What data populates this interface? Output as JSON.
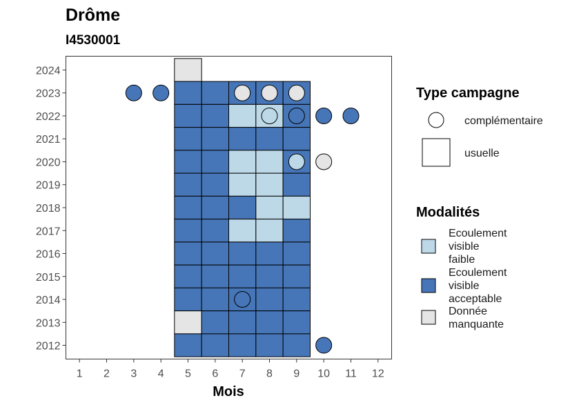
{
  "chart_data": {
    "type": "heatmap",
    "title": "Drôme",
    "subtitle": "I4530001",
    "xlabel": "Mois",
    "ylabel": "",
    "x_ticks": [
      1,
      2,
      3,
      4,
      5,
      6,
      7,
      8,
      9,
      10,
      11,
      12
    ],
    "y_ticks": [
      2012,
      2013,
      2014,
      2015,
      2016,
      2017,
      2018,
      2019,
      2020,
      2021,
      2022,
      2023,
      2024
    ],
    "xlim": [
      0.5,
      12.5
    ],
    "ylim": [
      2011.4,
      2024.6
    ],
    "grid": false,
    "colors": {
      "Ecoulement visible faible": "#bdd9e8",
      "Ecoulement visible acceptable": "#4676b7",
      "Donnée manquante": "#e5e5e5"
    },
    "usuelle": [
      {
        "year": 2024,
        "month": 5,
        "modalite": "Donnée manquante"
      },
      {
        "year": 2023,
        "month": 5,
        "modalite": "Ecoulement visible acceptable"
      },
      {
        "year": 2023,
        "month": 6,
        "modalite": "Ecoulement visible acceptable"
      },
      {
        "year": 2023,
        "month": 7,
        "modalite": "Ecoulement visible acceptable"
      },
      {
        "year": 2023,
        "month": 8,
        "modalite": "Ecoulement visible acceptable"
      },
      {
        "year": 2023,
        "month": 9,
        "modalite": "Ecoulement visible acceptable"
      },
      {
        "year": 2022,
        "month": 5,
        "modalite": "Ecoulement visible acceptable"
      },
      {
        "year": 2022,
        "month": 6,
        "modalite": "Ecoulement visible acceptable"
      },
      {
        "year": 2022,
        "month": 7,
        "modalite": "Ecoulement visible faible"
      },
      {
        "year": 2022,
        "month": 8,
        "modalite": "Ecoulement visible faible"
      },
      {
        "year": 2022,
        "month": 9,
        "modalite": "Ecoulement visible acceptable"
      },
      {
        "year": 2021,
        "month": 5,
        "modalite": "Ecoulement visible acceptable"
      },
      {
        "year": 2021,
        "month": 6,
        "modalite": "Ecoulement visible acceptable"
      },
      {
        "year": 2021,
        "month": 7,
        "modalite": "Ecoulement visible acceptable"
      },
      {
        "year": 2021,
        "month": 8,
        "modalite": "Ecoulement visible acceptable"
      },
      {
        "year": 2021,
        "month": 9,
        "modalite": "Ecoulement visible acceptable"
      },
      {
        "year": 2020,
        "month": 5,
        "modalite": "Ecoulement visible acceptable"
      },
      {
        "year": 2020,
        "month": 6,
        "modalite": "Ecoulement visible acceptable"
      },
      {
        "year": 2020,
        "month": 7,
        "modalite": "Ecoulement visible faible"
      },
      {
        "year": 2020,
        "month": 8,
        "modalite": "Ecoulement visible faible"
      },
      {
        "year": 2020,
        "month": 9,
        "modalite": "Ecoulement visible acceptable"
      },
      {
        "year": 2019,
        "month": 5,
        "modalite": "Ecoulement visible acceptable"
      },
      {
        "year": 2019,
        "month": 6,
        "modalite": "Ecoulement visible acceptable"
      },
      {
        "year": 2019,
        "month": 7,
        "modalite": "Ecoulement visible faible"
      },
      {
        "year": 2019,
        "month": 8,
        "modalite": "Ecoulement visible faible"
      },
      {
        "year": 2019,
        "month": 9,
        "modalite": "Ecoulement visible acceptable"
      },
      {
        "year": 2018,
        "month": 5,
        "modalite": "Ecoulement visible acceptable"
      },
      {
        "year": 2018,
        "month": 6,
        "modalite": "Ecoulement visible acceptable"
      },
      {
        "year": 2018,
        "month": 7,
        "modalite": "Ecoulement visible acceptable"
      },
      {
        "year": 2018,
        "month": 8,
        "modalite": "Ecoulement visible faible"
      },
      {
        "year": 2018,
        "month": 9,
        "modalite": "Ecoulement visible faible"
      },
      {
        "year": 2017,
        "month": 5,
        "modalite": "Ecoulement visible acceptable"
      },
      {
        "year": 2017,
        "month": 6,
        "modalite": "Ecoulement visible acceptable"
      },
      {
        "year": 2017,
        "month": 7,
        "modalite": "Ecoulement visible faible"
      },
      {
        "year": 2017,
        "month": 8,
        "modalite": "Ecoulement visible faible"
      },
      {
        "year": 2017,
        "month": 9,
        "modalite": "Ecoulement visible acceptable"
      },
      {
        "year": 2016,
        "month": 5,
        "modalite": "Ecoulement visible acceptable"
      },
      {
        "year": 2016,
        "month": 6,
        "modalite": "Ecoulement visible acceptable"
      },
      {
        "year": 2016,
        "month": 7,
        "modalite": "Ecoulement visible acceptable"
      },
      {
        "year": 2016,
        "month": 8,
        "modalite": "Ecoulement visible acceptable"
      },
      {
        "year": 2016,
        "month": 9,
        "modalite": "Ecoulement visible acceptable"
      },
      {
        "year": 2015,
        "month": 5,
        "modalite": "Ecoulement visible acceptable"
      },
      {
        "year": 2015,
        "month": 6,
        "modalite": "Ecoulement visible acceptable"
      },
      {
        "year": 2015,
        "month": 7,
        "modalite": "Ecoulement visible acceptable"
      },
      {
        "year": 2015,
        "month": 8,
        "modalite": "Ecoulement visible acceptable"
      },
      {
        "year": 2015,
        "month": 9,
        "modalite": "Ecoulement visible acceptable"
      },
      {
        "year": 2014,
        "month": 5,
        "modalite": "Ecoulement visible acceptable"
      },
      {
        "year": 2014,
        "month": 6,
        "modalite": "Ecoulement visible acceptable"
      },
      {
        "year": 2014,
        "month": 7,
        "modalite": "Ecoulement visible acceptable"
      },
      {
        "year": 2014,
        "month": 8,
        "modalite": "Ecoulement visible acceptable"
      },
      {
        "year": 2014,
        "month": 9,
        "modalite": "Ecoulement visible acceptable"
      },
      {
        "year": 2013,
        "month": 5,
        "modalite": "Donnée manquante"
      },
      {
        "year": 2013,
        "month": 6,
        "modalite": "Ecoulement visible acceptable"
      },
      {
        "year": 2013,
        "month": 7,
        "modalite": "Ecoulement visible acceptable"
      },
      {
        "year": 2013,
        "month": 8,
        "modalite": "Ecoulement visible acceptable"
      },
      {
        "year": 2013,
        "month": 9,
        "modalite": "Ecoulement visible acceptable"
      },
      {
        "year": 2012,
        "month": 5,
        "modalite": "Ecoulement visible acceptable"
      },
      {
        "year": 2012,
        "month": 6,
        "modalite": "Ecoulement visible acceptable"
      },
      {
        "year": 2012,
        "month": 7,
        "modalite": "Ecoulement visible acceptable"
      },
      {
        "year": 2012,
        "month": 8,
        "modalite": "Ecoulement visible acceptable"
      },
      {
        "year": 2012,
        "month": 9,
        "modalite": "Ecoulement visible acceptable"
      }
    ],
    "complementaire": [
      {
        "year": 2023,
        "month": 3,
        "modalite": "Ecoulement visible acceptable"
      },
      {
        "year": 2023,
        "month": 4,
        "modalite": "Ecoulement visible acceptable"
      },
      {
        "year": 2023,
        "month": 7,
        "modalite": "Donnée manquante"
      },
      {
        "year": 2023,
        "month": 8,
        "modalite": "Donnée manquante"
      },
      {
        "year": 2023,
        "month": 9,
        "modalite": "Donnée manquante"
      },
      {
        "year": 2022,
        "month": 8,
        "modalite": "Ecoulement visible faible"
      },
      {
        "year": 2022,
        "month": 9,
        "modalite": "Ecoulement visible acceptable"
      },
      {
        "year": 2022,
        "month": 10,
        "modalite": "Ecoulement visible acceptable"
      },
      {
        "year": 2022,
        "month": 11,
        "modalite": "Ecoulement visible acceptable"
      },
      {
        "year": 2020,
        "month": 9,
        "modalite": "Ecoulement visible faible"
      },
      {
        "year": 2020,
        "month": 10,
        "modalite": "Donnée manquante"
      },
      {
        "year": 2014,
        "month": 7,
        "modalite": "Ecoulement visible acceptable"
      },
      {
        "year": 2012,
        "month": 10,
        "modalite": "Ecoulement visible acceptable"
      }
    ],
    "legend": {
      "type_campagne": {
        "title": "Type campagne",
        "items": [
          "complémentaire",
          "usuelle"
        ]
      },
      "modalites": {
        "title": "Modalités",
        "items": [
          {
            "lines": [
              "Ecoulement",
              "visible",
              "faible"
            ],
            "value": "Ecoulement visible faible"
          },
          {
            "lines": [
              "Ecoulement",
              "visible",
              "acceptable"
            ],
            "value": "Ecoulement visible acceptable"
          },
          {
            "lines": [
              "Donnée",
              "manquante"
            ],
            "value": "Donnée manquante"
          }
        ]
      },
      "placement": "right"
    }
  }
}
